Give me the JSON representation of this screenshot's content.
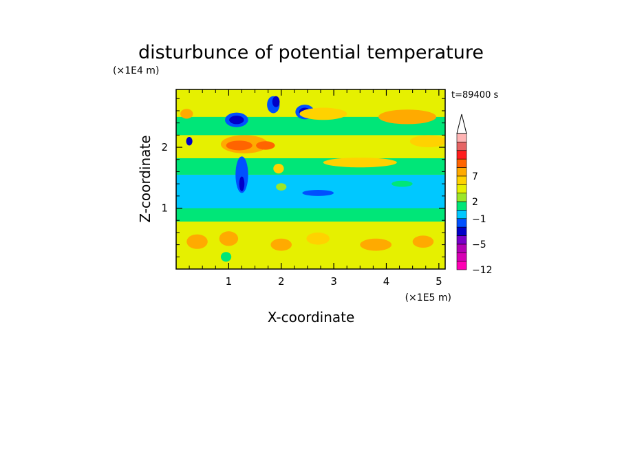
{
  "chart_data": {
    "type": "heatmap",
    "title": "disturbunce of potential temperature",
    "xlabel": "X-coordinate",
    "ylabel": "Z-coordinate",
    "x_unit": "(×1E5 m)",
    "y_unit": "(×1E4 m)",
    "time_label": "t=89400 s",
    "xlim": [
      0,
      5.12
    ],
    "ylim": [
      0,
      2.95
    ],
    "x_ticks": [
      {
        "value": 1,
        "label": "1"
      },
      {
        "value": 2,
        "label": "2"
      },
      {
        "value": 3,
        "label": "3"
      },
      {
        "value": 4,
        "label": "4"
      },
      {
        "value": 5,
        "label": "5"
      }
    ],
    "y_ticks": [
      {
        "value": 1,
        "label": "1"
      },
      {
        "value": 2,
        "label": "2"
      }
    ],
    "colorbar": {
      "levels": [
        "#ff00b4",
        "#d700b4",
        "#b400b4",
        "#7800c8",
        "#0000c8",
        "#0050ff",
        "#00c8ff",
        "#00e678",
        "#9be628",
        "#e6f000",
        "#ffd200",
        "#ffaa00",
        "#ff6400",
        "#ff1e1e",
        "#e66464",
        "#ffb4b4"
      ],
      "labels": [
        {
          "index": 0,
          "text": "−12"
        },
        {
          "index": 3,
          "text": "−5"
        },
        {
          "index": 6,
          "text": "−1"
        },
        {
          "index": 8,
          "text": "2"
        },
        {
          "index": 11,
          "text": "7"
        }
      ],
      "extend": "max"
    },
    "background_color": "#9be628",
    "bands": [
      {
        "y0": 0.0,
        "y1": 0.78,
        "color": "#e6f000"
      },
      {
        "y0": 0.78,
        "y1": 1.0,
        "color": "#00e678"
      },
      {
        "y0": 1.0,
        "y1": 1.55,
        "color": "#00c8ff"
      },
      {
        "y0": 1.55,
        "y1": 1.82,
        "color": "#00e678"
      },
      {
        "y0": 1.82,
        "y1": 2.2,
        "color": "#e6f000"
      },
      {
        "y0": 2.2,
        "y1": 2.5,
        "color": "#00e678"
      },
      {
        "y0": 2.5,
        "y1": 2.95,
        "color": "#e6f000"
      }
    ],
    "blobs": [
      {
        "x": 1.15,
        "z": 2.45,
        "rx": 0.22,
        "rz": 0.12,
        "color": "#0050ff"
      },
      {
        "x": 1.15,
        "z": 2.45,
        "rx": 0.14,
        "rz": 0.07,
        "color": "#0000c8"
      },
      {
        "x": 1.85,
        "z": 2.7,
        "rx": 0.12,
        "rz": 0.14,
        "color": "#0050ff"
      },
      {
        "x": 1.9,
        "z": 2.75,
        "rx": 0.07,
        "rz": 0.09,
        "color": "#0000c8"
      },
      {
        "x": 2.45,
        "z": 2.58,
        "rx": 0.18,
        "rz": 0.12,
        "color": "#0050ff"
      },
      {
        "x": 2.45,
        "z": 2.58,
        "rx": 0.11,
        "rz": 0.07,
        "color": "#0000c8"
      },
      {
        "x": 1.3,
        "z": 2.05,
        "rx": 0.45,
        "rz": 0.15,
        "color": "#ffaa00"
      },
      {
        "x": 1.2,
        "z": 2.03,
        "rx": 0.25,
        "rz": 0.08,
        "color": "#ff6400"
      },
      {
        "x": 1.7,
        "z": 2.03,
        "rx": 0.18,
        "rz": 0.07,
        "color": "#ff6400"
      },
      {
        "x": 1.25,
        "z": 1.55,
        "rx": 0.12,
        "rz": 0.3,
        "color": "#0050ff"
      },
      {
        "x": 1.25,
        "z": 1.4,
        "rx": 0.05,
        "rz": 0.12,
        "color": "#0000c8"
      },
      {
        "x": 2.8,
        "z": 2.55,
        "rx": 0.45,
        "rz": 0.1,
        "color": "#ffd200"
      },
      {
        "x": 4.4,
        "z": 2.5,
        "rx": 0.55,
        "rz": 0.12,
        "color": "#ffaa00"
      },
      {
        "x": 4.8,
        "z": 2.1,
        "rx": 0.35,
        "rz": 0.1,
        "color": "#ffd200"
      },
      {
        "x": 0.25,
        "z": 2.1,
        "rx": 0.06,
        "rz": 0.07,
        "color": "#0000c8"
      },
      {
        "x": 0.2,
        "z": 2.55,
        "rx": 0.12,
        "rz": 0.08,
        "color": "#ffaa00"
      },
      {
        "x": 0.4,
        "z": 0.45,
        "rx": 0.2,
        "rz": 0.12,
        "color": "#ffaa00"
      },
      {
        "x": 1.0,
        "z": 0.5,
        "rx": 0.18,
        "rz": 0.12,
        "color": "#ffaa00"
      },
      {
        "x": 2.0,
        "z": 0.4,
        "rx": 0.2,
        "rz": 0.1,
        "color": "#ffaa00"
      },
      {
        "x": 2.7,
        "z": 0.5,
        "rx": 0.22,
        "rz": 0.1,
        "color": "#ffd200"
      },
      {
        "x": 3.8,
        "z": 0.4,
        "rx": 0.3,
        "rz": 0.1,
        "color": "#ffaa00"
      },
      {
        "x": 4.7,
        "z": 0.45,
        "rx": 0.2,
        "rz": 0.1,
        "color": "#ffaa00"
      },
      {
        "x": 0.95,
        "z": 0.2,
        "rx": 0.1,
        "rz": 0.08,
        "color": "#00e678"
      },
      {
        "x": 2.7,
        "z": 1.25,
        "rx": 0.3,
        "rz": 0.05,
        "color": "#0050ff"
      },
      {
        "x": 4.3,
        "z": 1.4,
        "rx": 0.2,
        "rz": 0.05,
        "color": "#00e678"
      },
      {
        "x": 3.5,
        "z": 1.75,
        "rx": 0.7,
        "rz": 0.08,
        "color": "#ffd200"
      },
      {
        "x": 1.95,
        "z": 1.65,
        "rx": 0.1,
        "rz": 0.08,
        "color": "#ffd200"
      },
      {
        "x": 2.0,
        "z": 1.35,
        "rx": 0.1,
        "rz": 0.06,
        "color": "#9be628"
      }
    ]
  }
}
